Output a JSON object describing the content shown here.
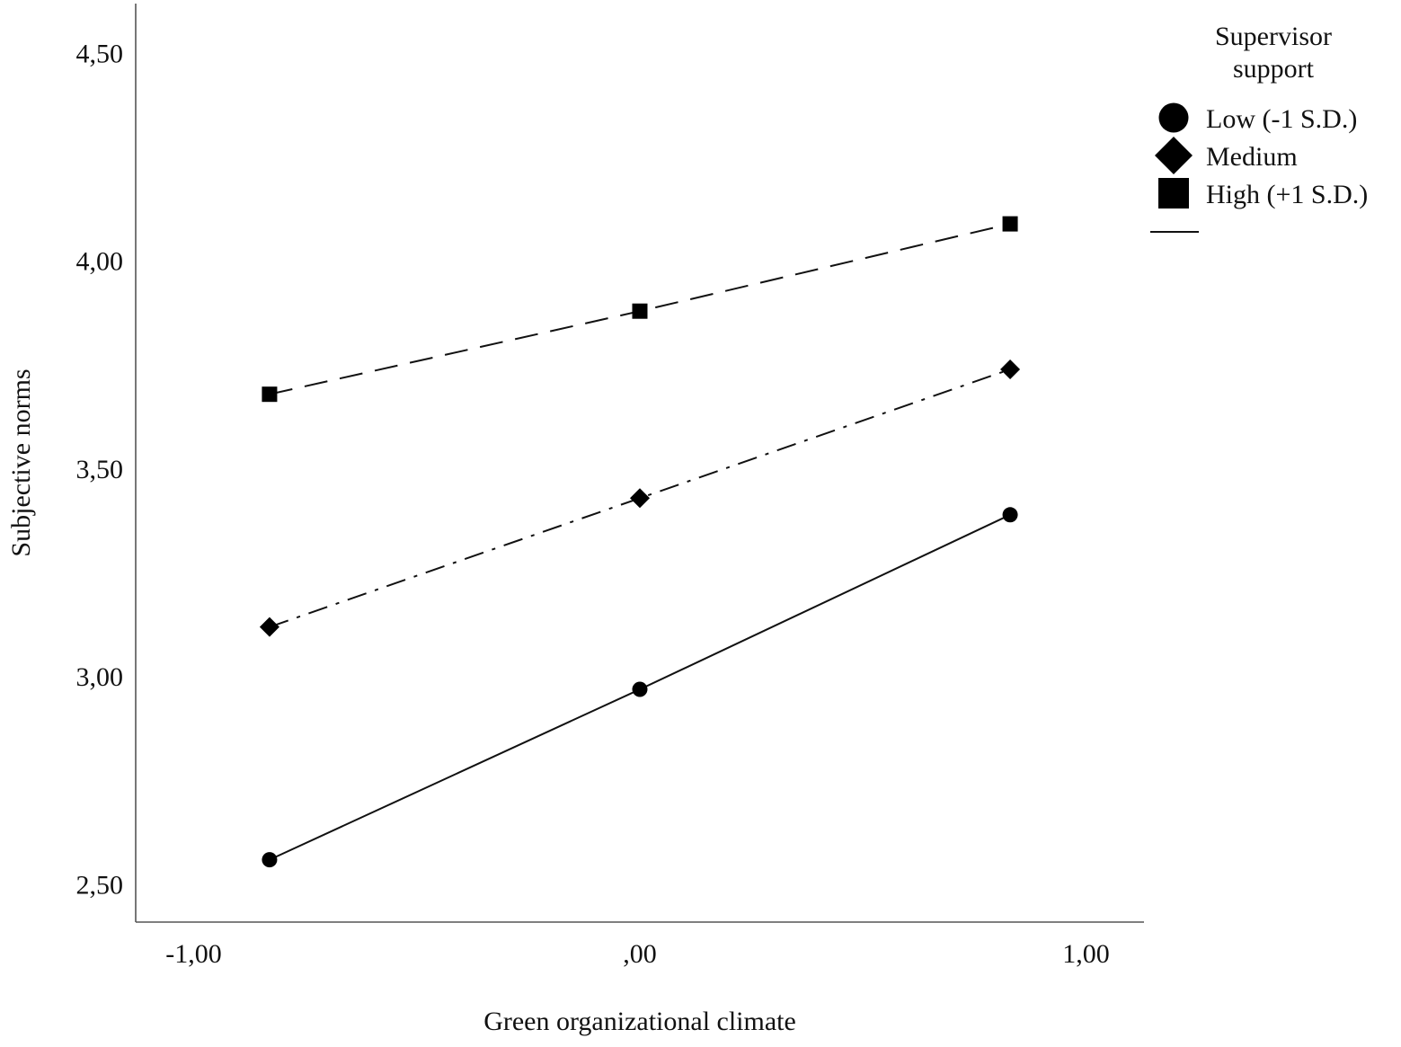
{
  "chart_data": {
    "type": "line",
    "xlabel": "Green organizational climate",
    "ylabel": "Subjective norms",
    "x_tick_labels": [
      "-1,00",
      ",00",
      "1,00"
    ],
    "y_tick_labels": [
      "2,50",
      "3,00",
      "3,50",
      "4,00",
      "4,50"
    ],
    "xlim": [
      -1.13,
      1.13
    ],
    "ylim": [
      2.41,
      4.62
    ],
    "x_ticks": [
      -1.0,
      0.0,
      1.0
    ],
    "y_ticks": [
      2.5,
      3.0,
      3.5,
      4.0,
      4.5
    ],
    "x": [
      -0.83,
      0.0,
      0.83
    ],
    "grid": false,
    "legend": {
      "title_lines": [
        "Supervisor",
        "support"
      ],
      "placement": "top-right"
    },
    "series": [
      {
        "name": "Low (-1 S.D.)",
        "marker": "circle",
        "line_style": "solid",
        "values": [
          2.56,
          2.97,
          3.39
        ]
      },
      {
        "name": "Medium",
        "marker": "diamond",
        "line_style": "dash-dot",
        "values": [
          3.12,
          3.43,
          3.74
        ]
      },
      {
        "name": "High (+1 S.D.)",
        "marker": "square",
        "line_style": "dashed",
        "values": [
          3.68,
          3.88,
          4.09
        ]
      }
    ]
  }
}
